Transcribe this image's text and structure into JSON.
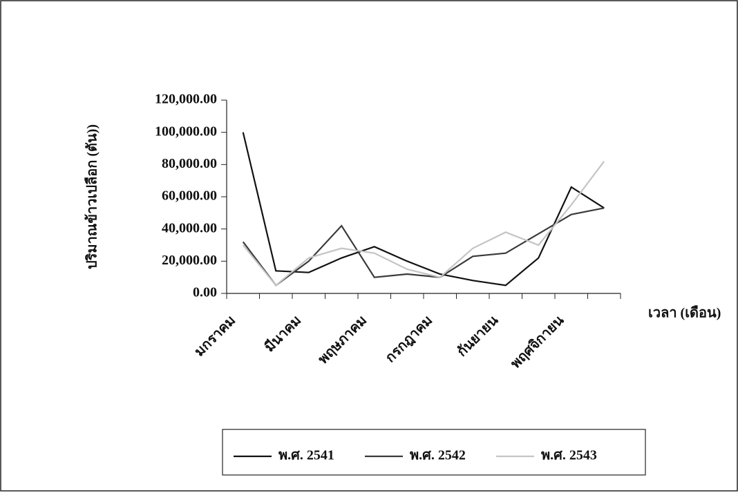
{
  "chart_data": {
    "type": "line",
    "y_label": "ปริมาณข้าวเปลือก (ตัน))",
    "x_label": "เวลา (เดือน)",
    "categories": [
      "มกราคม",
      null,
      "มีนาคม",
      null,
      "พฤษภาคม",
      null,
      "กรกฎาคม",
      null,
      "กันยายน",
      null,
      "พฤศจิกายน",
      null
    ],
    "series": [
      {
        "name": "พ.ศ. 2541",
        "color": "#111111",
        "values": [
          100000,
          14000,
          13000,
          22000,
          29000,
          20000,
          12000,
          8000,
          5000,
          22000,
          66000,
          53000
        ]
      },
      {
        "name": "พ.ศ. 2542",
        "color": "#3a3a3a",
        "values": [
          32000,
          5000,
          20000,
          42000,
          10000,
          12000,
          10000,
          23000,
          25000,
          37000,
          49000,
          53000
        ]
      },
      {
        "name": "พ.ศ. 2543",
        "color": "#c4c4c4",
        "values": [
          30000,
          5000,
          22000,
          28000,
          25000,
          15000,
          10000,
          28000,
          38000,
          30000,
          55000,
          82000
        ]
      }
    ],
    "ylim": [
      0,
      120000
    ],
    "yticks": [
      {
        "value": 0,
        "label": "0.00"
      },
      {
        "value": 20000,
        "label": "20,000.00"
      },
      {
        "value": 40000,
        "label": "40,000.00"
      },
      {
        "value": 60000,
        "label": "60,000.00"
      },
      {
        "value": 80000,
        "label": "80,000.00"
      },
      {
        "value": 100000,
        "label": "100,000.00"
      },
      {
        "value": 120000,
        "label": "120,000.00"
      }
    ]
  }
}
